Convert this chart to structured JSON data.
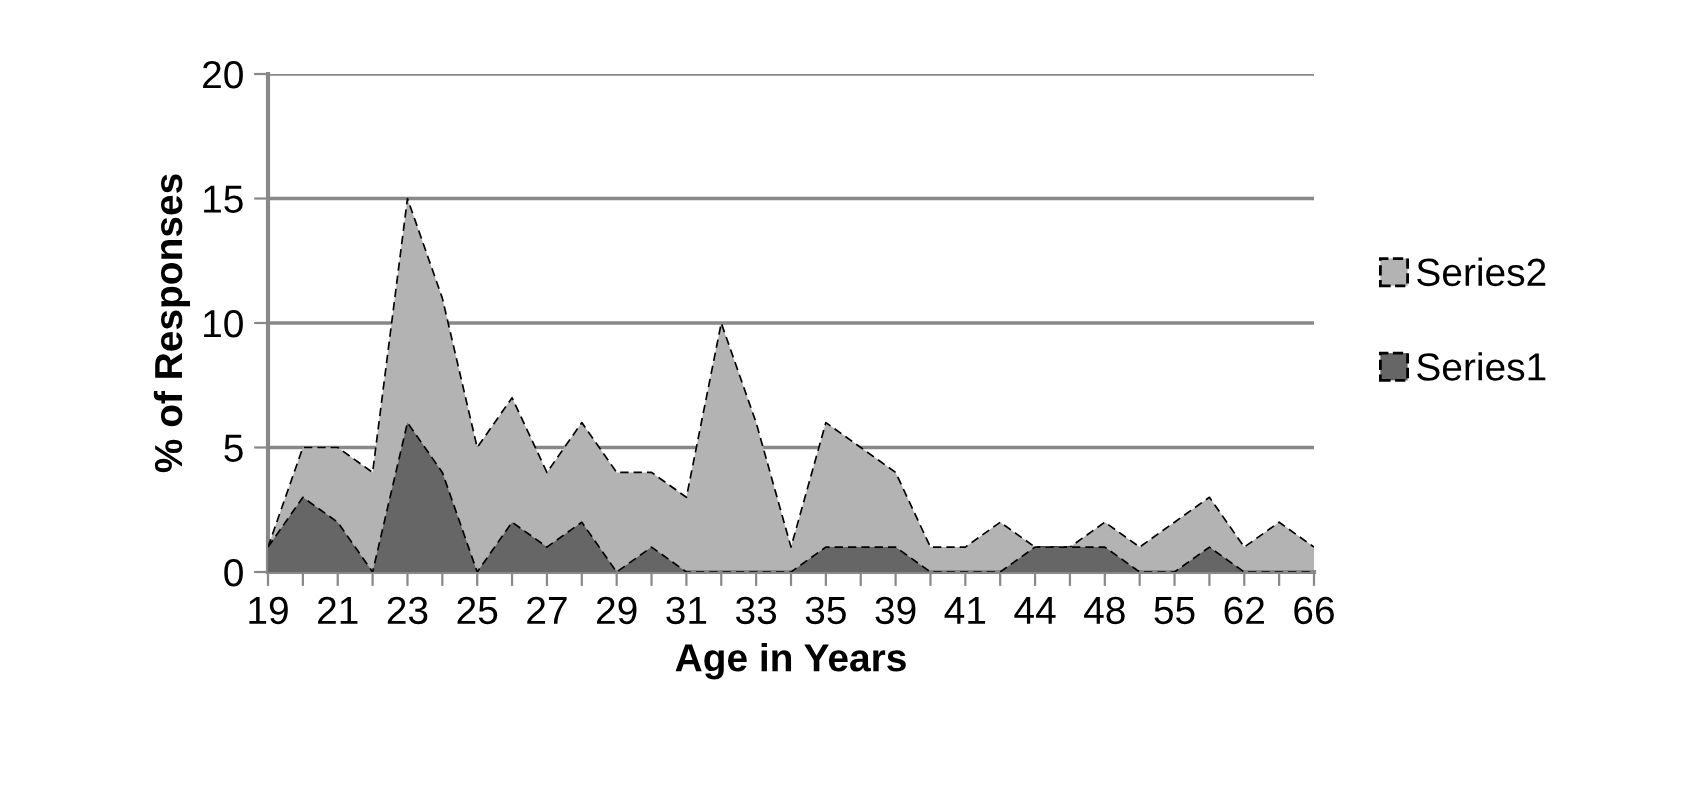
{
  "chart_data": {
    "type": "area",
    "xlabel": "Age in Years",
    "ylabel": "% of Responses",
    "categories": [
      "19",
      null,
      "21",
      null,
      "23",
      null,
      "25",
      null,
      "27",
      null,
      "29",
      null,
      "31",
      null,
      "33",
      null,
      "35",
      null,
      "39",
      null,
      "41",
      null,
      "44",
      null,
      "48",
      null,
      "55",
      null,
      "62",
      null,
      "66"
    ],
    "series": [
      {
        "name": "Series2",
        "color": "#b3b3b3",
        "values": [
          1,
          5,
          5,
          4,
          15,
          11,
          5,
          7,
          4,
          6,
          4,
          4,
          3,
          10,
          6,
          1,
          6,
          5,
          4,
          1,
          1,
          2,
          1,
          1,
          2,
          1,
          2,
          3,
          1,
          2,
          1
        ]
      },
      {
        "name": "Series1",
        "color": "#666666",
        "values": [
          1,
          3,
          2,
          0,
          6,
          4,
          0,
          2,
          1,
          2,
          0,
          1,
          0,
          0,
          0,
          0,
          1,
          1,
          1,
          0,
          0,
          0,
          1,
          1,
          1,
          0,
          0,
          1,
          0,
          0,
          0
        ]
      }
    ],
    "ylim": [
      0,
      20
    ],
    "yticks": [
      0,
      5,
      10,
      15,
      20
    ],
    "grid": "y",
    "legend": "right",
    "line_style": "dashed"
  }
}
